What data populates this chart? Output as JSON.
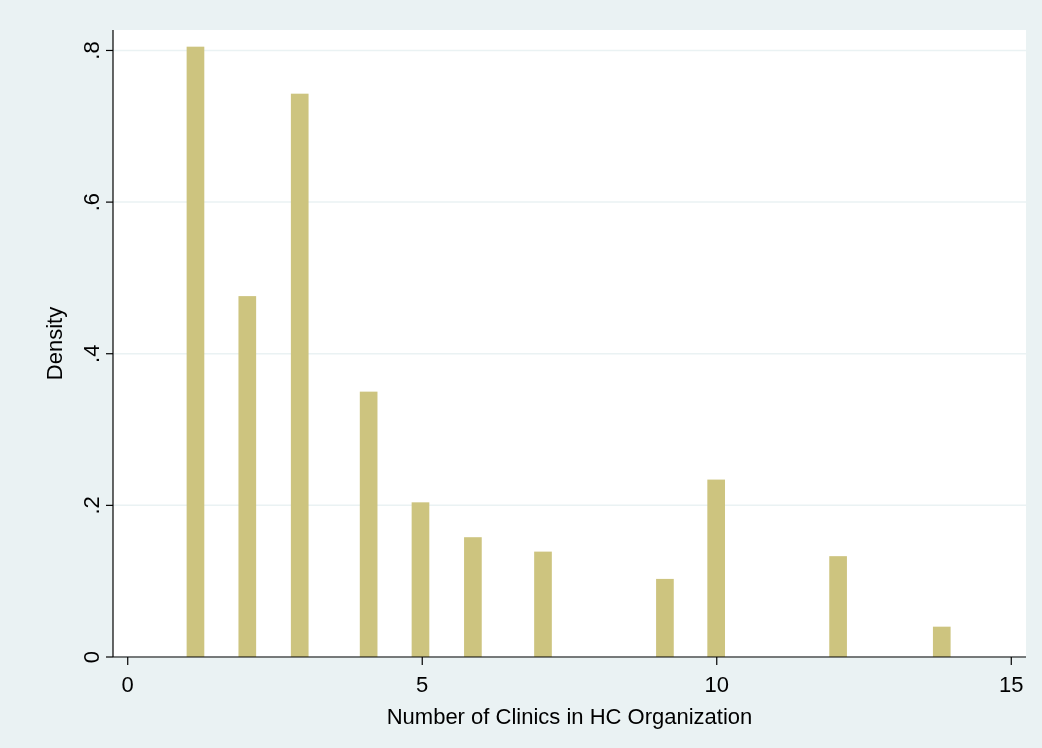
{
  "chart_data": {
    "type": "bar",
    "xlabel": "Number of Clinics in HC Organization",
    "ylabel": "Density",
    "x": [
      1.15,
      2.03,
      2.92,
      4.09,
      4.97,
      5.86,
      7.05,
      9.12,
      9.99,
      12.06,
      13.82
    ],
    "values": [
      0.805,
      0.476,
      0.743,
      0.35,
      0.204,
      0.158,
      0.139,
      0.103,
      0.234,
      0.133,
      0.04
    ],
    "color": "#cdc47f",
    "xlim": [
      -0.25,
      15.25
    ],
    "xticks": [
      0,
      5,
      10,
      15
    ],
    "ylim": [
      0,
      0.827
    ],
    "yticks": [
      0,
      {
        "value": 0.2,
        "label": ".2"
      },
      {
        "value": 0.4,
        "label": ".4"
      },
      {
        "value": 0.6,
        "label": ".6"
      },
      {
        "value": 0.8,
        "label": ".8"
      }
    ],
    "grid": "y"
  }
}
